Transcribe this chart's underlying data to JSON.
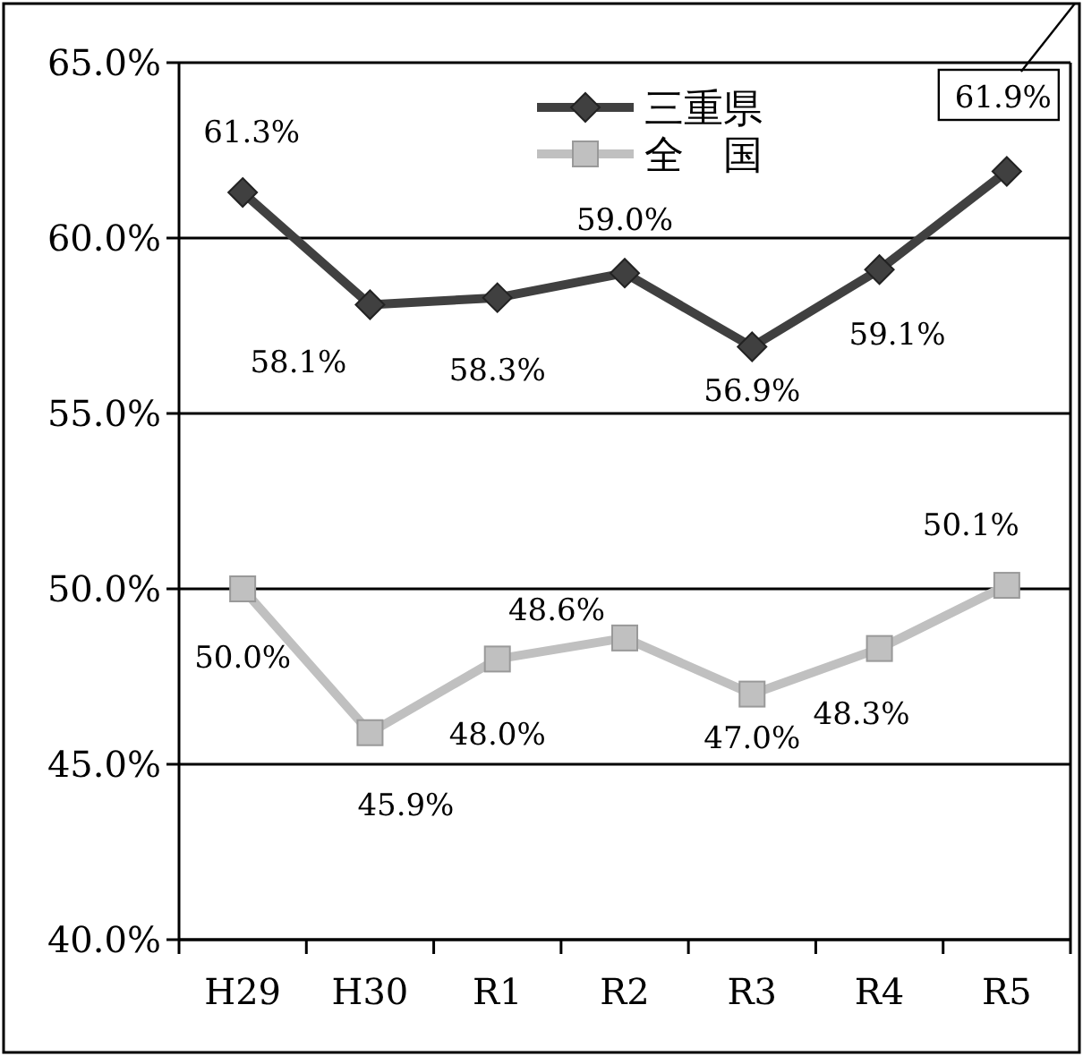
{
  "chart_data": {
    "type": "line",
    "categories": [
      "H29",
      "H30",
      "R1",
      "R2",
      "R3",
      "R4",
      "R5"
    ],
    "series": [
      {
        "name": "三重県",
        "color": "#404040",
        "marker": "diamond",
        "values": [
          61.3,
          58.1,
          58.3,
          59.0,
          56.9,
          59.1,
          61.9
        ],
        "value_labels": [
          "61.3%",
          "58.1%",
          "58.3%",
          "59.0%",
          "56.9%",
          "59.1%",
          "61.9%"
        ]
      },
      {
        "name": "全　国",
        "color": "#c0c0c0",
        "marker": "square",
        "values": [
          50.0,
          45.9,
          48.0,
          48.6,
          47.0,
          48.3,
          50.1
        ],
        "value_labels": [
          "50.0%",
          "45.9%",
          "48.0%",
          "48.6%",
          "47.0%",
          "48.3%",
          "50.1%"
        ]
      }
    ],
    "ylim": [
      40,
      65
    ],
    "yticks": [
      {
        "value": 40,
        "label": "40.0%"
      },
      {
        "value": 45,
        "label": "45.0%"
      },
      {
        "value": 50,
        "label": "50.0%"
      },
      {
        "value": 55,
        "label": "55.0%"
      },
      {
        "value": 60,
        "label": "60.0%"
      },
      {
        "value": 65,
        "label": "65.0%"
      }
    ],
    "grid": "y",
    "legend": "top",
    "line_style": "solid"
  }
}
